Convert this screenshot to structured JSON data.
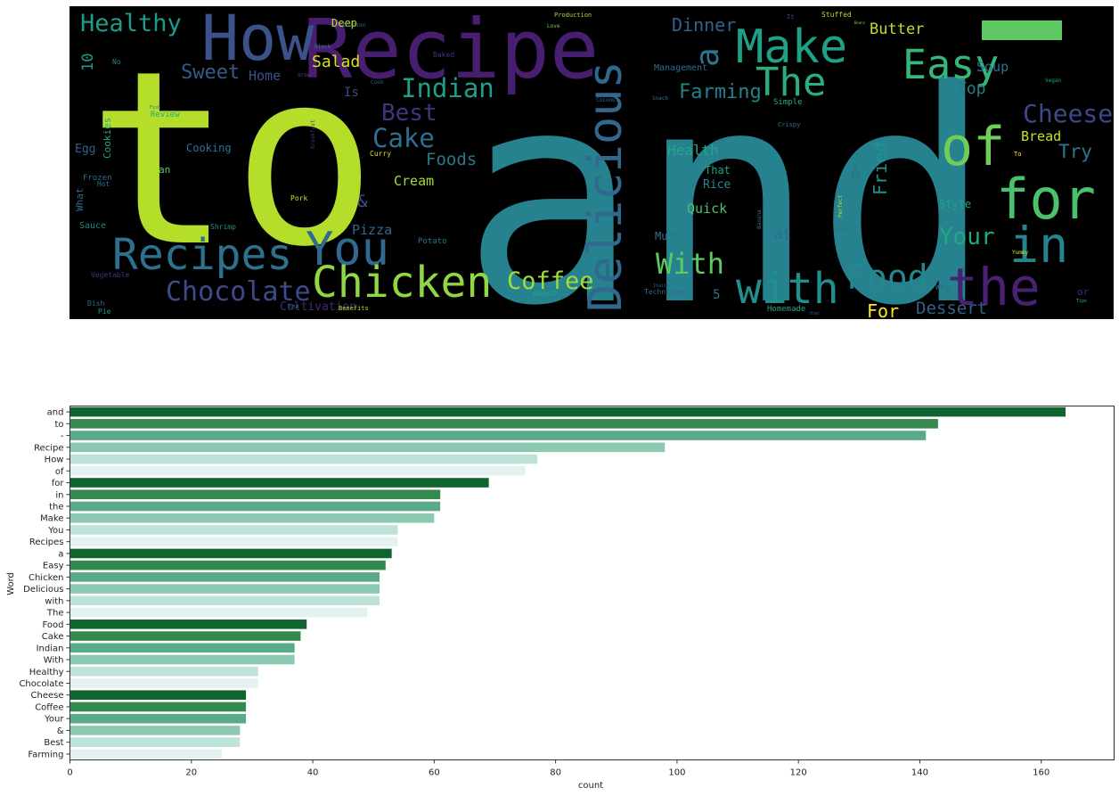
{
  "colors": {
    "background": "#000000",
    "bar_palette": [
      "#10652e",
      "#34894f",
      "#58ab86",
      "#8dc9b1",
      "#bde3d8",
      "#e3f2f0"
    ],
    "axis": "#333333",
    "text": "#222222"
  },
  "wordcloud": {
    "words": [
      {
        "text": "to",
        "color": "#b5de2b"
      },
      {
        "text": "and",
        "color": "#26828e"
      },
      {
        "text": "Recipe",
        "color": "#481f70"
      },
      {
        "text": "How",
        "color": "#3b528b"
      },
      {
        "text": "Make",
        "color": "#1fa187"
      },
      {
        "text": "Easy",
        "color": "#35b779"
      },
      {
        "text": "of",
        "color": "#6ece58"
      },
      {
        "text": "for",
        "color": "#4ac16d"
      },
      {
        "text": "in",
        "color": "#25848e"
      },
      {
        "text": "the",
        "color": "#482173"
      },
      {
        "text": "Recipes",
        "color": "#2c728e"
      },
      {
        "text": "You",
        "color": "#306a8e"
      },
      {
        "text": "Chicken",
        "color": "#90d743"
      },
      {
        "text": "Delicious",
        "color": "#31688e"
      },
      {
        "text": "with",
        "color": "#21908d"
      },
      {
        "text": "Food",
        "color": "#24868e"
      },
      {
        "text": "Chocolate",
        "color": "#3e4a89"
      },
      {
        "text": "The",
        "color": "#29af7f"
      },
      {
        "text": "a",
        "color": "#2a768e"
      },
      {
        "text": "Indian",
        "color": "#1f9e89"
      },
      {
        "text": "Cake",
        "color": "#2d708e"
      },
      {
        "text": "Cheese",
        "color": "#3f4788"
      },
      {
        "text": "With",
        "color": "#5ec962"
      },
      {
        "text": "Coffee",
        "color": "#a2da37"
      },
      {
        "text": "Healthy",
        "color": "#1e9b8a"
      },
      {
        "text": "Best",
        "color": "#46327e"
      },
      {
        "text": "Sweet",
        "color": "#38598c"
      },
      {
        "text": "Your",
        "color": "#22a884"
      },
      {
        "text": "Farming",
        "color": "#27808e"
      },
      {
        "text": "Dinner",
        "color": "#33638d"
      },
      {
        "text": "Foods",
        "color": "#2a788e"
      },
      {
        "text": "Dessert",
        "color": "#355f8d"
      },
      {
        "text": "Try",
        "color": "#2a788e"
      },
      {
        "text": "Fried",
        "color": "#20928c"
      },
      {
        "text": "Top",
        "color": "#287c8e"
      },
      {
        "text": "Salad",
        "color": "#d8e219"
      },
      {
        "text": "Butter",
        "color": "#bddf26"
      },
      {
        "text": "For",
        "color": "#fde725"
      },
      {
        "text": "Soup",
        "color": "#2c728e"
      },
      {
        "text": "Health",
        "color": "#22a785"
      },
      {
        "text": "Bread",
        "color": "#c8e020"
      },
      {
        "text": "Cream",
        "color": "#a5db36"
      },
      {
        "text": "Pizza",
        "color": "#31688e"
      },
      {
        "text": "Quick",
        "color": "#4ac16d"
      },
      {
        "text": "Home",
        "color": "#3b528b"
      },
      {
        "text": "Cooking",
        "color": "#2c728e"
      },
      {
        "text": "Deep",
        "color": "#c0df25"
      },
      {
        "text": "10",
        "color": "#1f9a8a"
      },
      {
        "text": "Is",
        "color": "#3e4989"
      },
      {
        "text": "&",
        "color": "#3b528b"
      },
      {
        "text": "Egg",
        "color": "#355f8d"
      },
      {
        "text": "Cookies",
        "color": "#22a884"
      },
      {
        "text": "Cultivation",
        "color": "#482878"
      },
      {
        "text": "at",
        "color": "#2e6e8e"
      },
      {
        "text": "Rice",
        "color": "#238a8d"
      },
      {
        "text": "Style",
        "color": "#1fa088"
      },
      {
        "text": "That",
        "color": "#20a386"
      },
      {
        "text": "Must",
        "color": "#2a768e"
      },
      {
        "text": "A",
        "color": "#2c728e"
      },
      {
        "text": "5",
        "color": "#2c738e"
      },
      {
        "text": "an",
        "color": "#5ec962"
      },
      {
        "text": "What",
        "color": "#31688e"
      },
      {
        "text": "Sauce",
        "color": "#26828e"
      },
      {
        "text": "Management",
        "color": "#2e6e8e"
      },
      {
        "text": "Review",
        "color": "#22a884"
      },
      {
        "text": "Potato",
        "color": "#2a788e"
      },
      {
        "text": "Shrimp",
        "color": "#21918c"
      },
      {
        "text": "Pork",
        "color": "#d2e21b"
      },
      {
        "text": "Curry",
        "color": "#dde318"
      },
      {
        "text": "Simple",
        "color": "#29af7f"
      },
      {
        "text": "Why",
        "color": "#2f6c8e"
      },
      {
        "text": "About",
        "color": "#20a386"
      },
      {
        "text": "Techniques",
        "color": "#31688e"
      },
      {
        "text": "Homemade",
        "color": "#20a386"
      },
      {
        "text": "Baked",
        "color": "#46327e"
      },
      {
        "text": "Black",
        "color": "#2a788e"
      },
      {
        "text": "No",
        "color": "#25858e"
      },
      {
        "text": "Hot",
        "color": "#2a778e"
      },
      {
        "text": "Frozen",
        "color": "#2e6e8e"
      },
      {
        "text": "Vegetable",
        "color": "#46327e"
      },
      {
        "text": "Dish",
        "color": "#2c728e"
      },
      {
        "text": "Pie",
        "color": "#1e9b8a"
      },
      {
        "text": "Tea",
        "color": "#2f6c8e"
      },
      {
        "text": "Benefits",
        "color": "#bddf26"
      },
      {
        "text": "Stuffed",
        "color": "#b5de2b"
      },
      {
        "text": "Crispy",
        "color": "#2a788e"
      },
      {
        "text": "Production",
        "color": "#a8db34"
      },
      {
        "text": "Edition",
        "color": "#2e6e8e"
      },
      {
        "text": "Grow",
        "color": "#3e4989"
      },
      {
        "text": "Cook",
        "color": "#39568c"
      },
      {
        "text": "Love",
        "color": "#7ad151"
      },
      {
        "text": "It",
        "color": "#3e4989"
      },
      {
        "text": "To",
        "color": "#fde725"
      },
      {
        "text": "Breakfast",
        "color": "#482878"
      },
      {
        "text": "Snack",
        "color": "#2c728e"
      },
      {
        "text": "Italian",
        "color": "#2e6e8e"
      },
      {
        "text": "Popular",
        "color": "#2e6e8e"
      },
      {
        "text": "Perfect",
        "color": "#bddf26"
      },
      {
        "text": "Banana",
        "color": "#2e6e8e"
      },
      {
        "text": "Yummy",
        "color": "#d8e219"
      },
      {
        "text": "Fish",
        "color": "#2e6e8e"
      },
      {
        "text": "that",
        "color": "#39568c"
      },
      {
        "text": "Beans",
        "color": "#7ad151"
      },
      {
        "text": "Coconut",
        "color": "#2e6e8e"
      },
      {
        "text": "or",
        "color": "#482878"
      },
      {
        "text": "Vegan",
        "color": "#20a386"
      },
      {
        "text": "Tips",
        "color": "#35b779"
      }
    ]
  },
  "chart_data": {
    "type": "bar",
    "orientation": "horizontal",
    "title": "",
    "xlabel": "count",
    "ylabel": "Word",
    "xlim": [
      0,
      172
    ],
    "xticks": [
      0,
      20,
      40,
      60,
      80,
      100,
      120,
      140,
      160
    ],
    "categories": [
      "and",
      "to",
      "-",
      "Recipe",
      "How",
      "of",
      "for",
      "in",
      "the",
      "Make",
      "You",
      "Recipes",
      "a",
      "Easy",
      "Chicken",
      "Delicious",
      "with",
      "The",
      "Food",
      "Cake",
      "Indian",
      "With",
      "Healthy",
      "Chocolate",
      "Cheese",
      "Coffee",
      "Your",
      "&",
      "Best",
      "Farming"
    ],
    "values": [
      164,
      143,
      141,
      98,
      77,
      75,
      69,
      61,
      61,
      60,
      54,
      54,
      53,
      52,
      51,
      51,
      51,
      49,
      39,
      38,
      37,
      37,
      31,
      31,
      29,
      29,
      29,
      28,
      28,
      25
    ]
  }
}
